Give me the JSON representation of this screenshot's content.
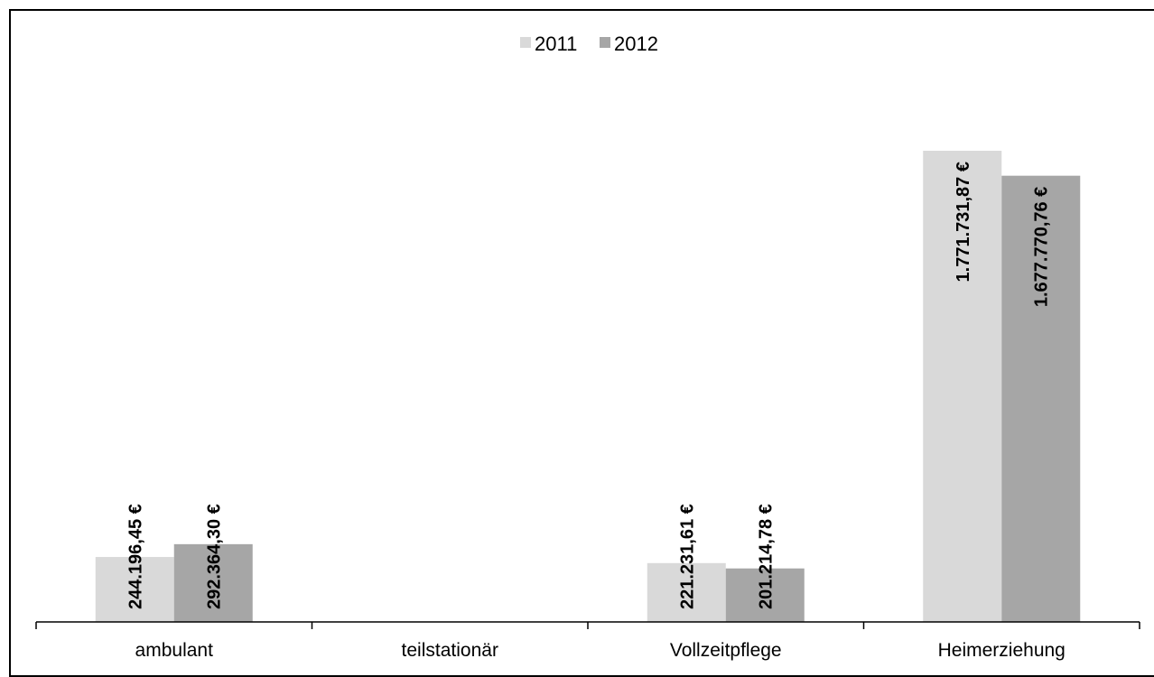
{
  "chart_data": {
    "type": "bar",
    "categories": [
      "ambulant",
      "teilstationär",
      "Vollzeitpflege",
      "Heimerziehung"
    ],
    "series": [
      {
        "name": "2011",
        "color": "#d9d9d9",
        "values": [
          244196.45,
          null,
          221231.61,
          1771731.87
        ],
        "labels": [
          "244.196,45 €",
          "",
          "221.231,61 €",
          "1.771.731,87 €"
        ]
      },
      {
        "name": "2012",
        "color": "#a6a6a6",
        "values": [
          292364.3,
          null,
          201214.78,
          1677770.76
        ],
        "labels": [
          "292.364,30 €",
          "",
          "201.214,78 €",
          "1.677.770,76 €"
        ]
      }
    ],
    "ylim": [
      0,
      2000000
    ],
    "grid": false,
    "legend_position": "top-center"
  }
}
